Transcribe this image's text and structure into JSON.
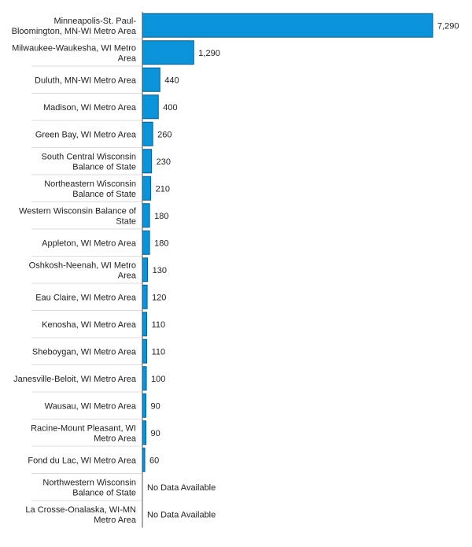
{
  "chart_data": {
    "type": "bar",
    "orientation": "horizontal",
    "categories": [
      "Minneapolis-St. Paul-Bloomington, MN-WI Metro Area",
      "Milwaukee-Waukesha, WI Metro Area",
      "Duluth, MN-WI Metro Area",
      "Madison, WI Metro Area",
      "Green Bay, WI Metro Area",
      "South Central Wisconsin Balance of State",
      "Northeastern Wisconsin Balance of State",
      "Western Wisconsin Balance of State",
      "Appleton, WI Metro Area",
      "Oshkosh-Neenah, WI Metro Area",
      "Eau Claire, WI Metro Area",
      "Kenosha, WI Metro Area",
      "Sheboygan, WI Metro Area",
      "Janesville-Beloit, WI Metro Area",
      "Wausau, WI Metro Area",
      "Racine-Mount Pleasant, WI Metro Area",
      "Fond du Lac, WI Metro Area",
      "Northwestern Wisconsin Balance of State",
      "La Crosse-Onalaska, WI-MN Metro Area"
    ],
    "category_lines": [
      [
        "Minneapolis-St. Paul-",
        "Bloomington, MN-WI Metro Area"
      ],
      [
        "Milwaukee-Waukesha, WI Metro",
        "Area"
      ],
      [
        "Duluth, MN-WI Metro Area"
      ],
      [
        "Madison, WI Metro Area"
      ],
      [
        "Green Bay, WI Metro Area"
      ],
      [
        "South Central Wisconsin",
        "Balance of State"
      ],
      [
        "Northeastern Wisconsin",
        "Balance of State"
      ],
      [
        "Western Wisconsin Balance of",
        "State"
      ],
      [
        "Appleton, WI Metro Area"
      ],
      [
        "Oshkosh-Neenah, WI Metro",
        "Area"
      ],
      [
        "Eau Claire, WI Metro Area"
      ],
      [
        "Kenosha, WI Metro Area"
      ],
      [
        "Sheboygan, WI Metro Area"
      ],
      [
        "Janesville-Beloit, WI Metro Area"
      ],
      [
        "Wausau, WI Metro Area"
      ],
      [
        "Racine-Mount Pleasant, WI",
        "Metro Area"
      ],
      [
        "Fond du Lac, WI Metro Area"
      ],
      [
        "Northwestern Wisconsin",
        "Balance of State"
      ],
      [
        "La Crosse-Onalaska, WI-MN",
        "Metro Area"
      ]
    ],
    "values": [
      7290,
      1290,
      440,
      400,
      260,
      230,
      210,
      180,
      180,
      130,
      120,
      110,
      110,
      100,
      90,
      90,
      60,
      null,
      null
    ],
    "data_labels": [
      "7,290",
      "1,290",
      "440",
      "400",
      "260",
      "230",
      "210",
      "180",
      "180",
      "130",
      "120",
      "110",
      "110",
      "100",
      "90",
      "90",
      "60",
      "No Data Available",
      "No Data Available"
    ],
    "xlim": [
      0,
      7290
    ],
    "bar_color": "#0a93d8",
    "bar_border_color": "#0a5e8c",
    "grid": false,
    "legend": "none",
    "title": "",
    "xlabel": "",
    "ylabel": ""
  }
}
